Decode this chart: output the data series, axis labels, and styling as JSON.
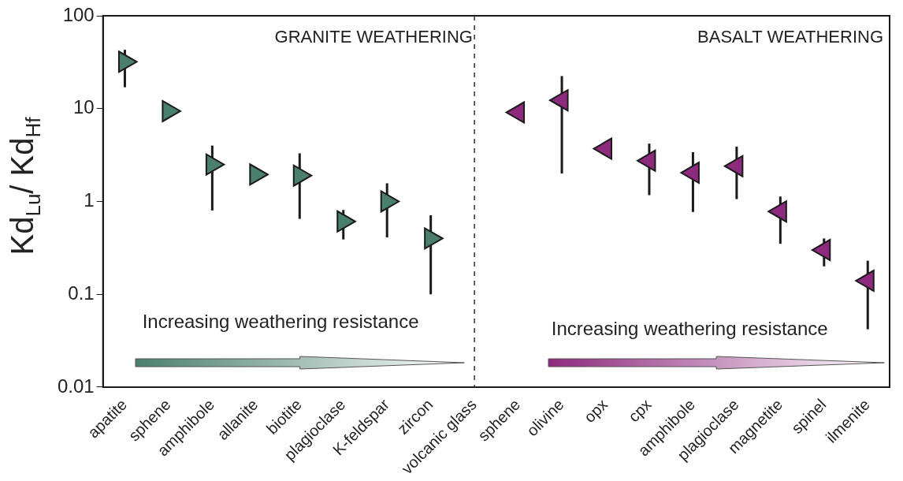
{
  "chart_data": {
    "type": "scatter",
    "ylabel": "Kd$_{Lu}$/ Kd$_{Hf}$",
    "categories": [
      "apatite",
      "sphene",
      "amphibole",
      "allanite",
      "biotite",
      "plagioclase",
      "K-feldspar",
      "zircon",
      "volcanic glass",
      "sphene",
      "olivine",
      "opx",
      "cpx",
      "amphibole",
      "plagioclase",
      "magnetite",
      "spinel",
      "ilmenite"
    ],
    "series": [
      {
        "color": "#4a7f6d",
        "values": [
          32,
          9.4,
          2.5,
          1.95,
          1.9,
          0.61,
          1.0,
          0.4,
          null,
          null,
          null,
          null,
          null,
          null,
          null,
          null,
          null,
          null
        ],
        "errors": [
          [
            17,
            43
          ],
          null,
          [
            0.8,
            4.0
          ],
          null,
          [
            0.65,
            3.3
          ],
          [
            0.39,
            0.81
          ],
          [
            0.41,
            1.57
          ],
          [
            0.1,
            0.71
          ],
          null,
          null,
          null,
          null,
          null,
          null,
          null,
          null,
          null,
          null
        ]
      },
      {
        "color": "#8e2a7d",
        "values": [
          null,
          null,
          null,
          null,
          null,
          null,
          null,
          null,
          null,
          9.1,
          12.3,
          3.7,
          2.75,
          2.04,
          2.4,
          0.78,
          0.3,
          0.14
        ],
        "errors": [
          null,
          null,
          null,
          null,
          null,
          null,
          null,
          null,
          null,
          null,
          [
            2.0,
            22.4
          ],
          null,
          [
            1.17,
            4.2
          ],
          [
            0.77,
            3.4
          ],
          [
            1.06,
            3.9
          ],
          [
            0.35,
            1.13
          ],
          [
            0.2,
            0.4
          ],
          [
            0.042,
            0.23
          ]
        ]
      }
    ],
    "log": "y",
    "ylim": [
      0.01,
      100
    ],
    "yticks": [
      0.01,
      0.1,
      1,
      10,
      100
    ],
    "marker": "triangle",
    "grid": false,
    "legend": false,
    "ref_lines": [
      {
        "axis": "x",
        "value": "volcanic glass",
        "color": "#333333",
        "line_style": "dashed"
      }
    ],
    "annotations": [
      "GRANITE WEATHERING",
      "BASALT WEATHERING",
      "Increasing weathering resistance",
      "Increasing weathering resistance"
    ]
  }
}
